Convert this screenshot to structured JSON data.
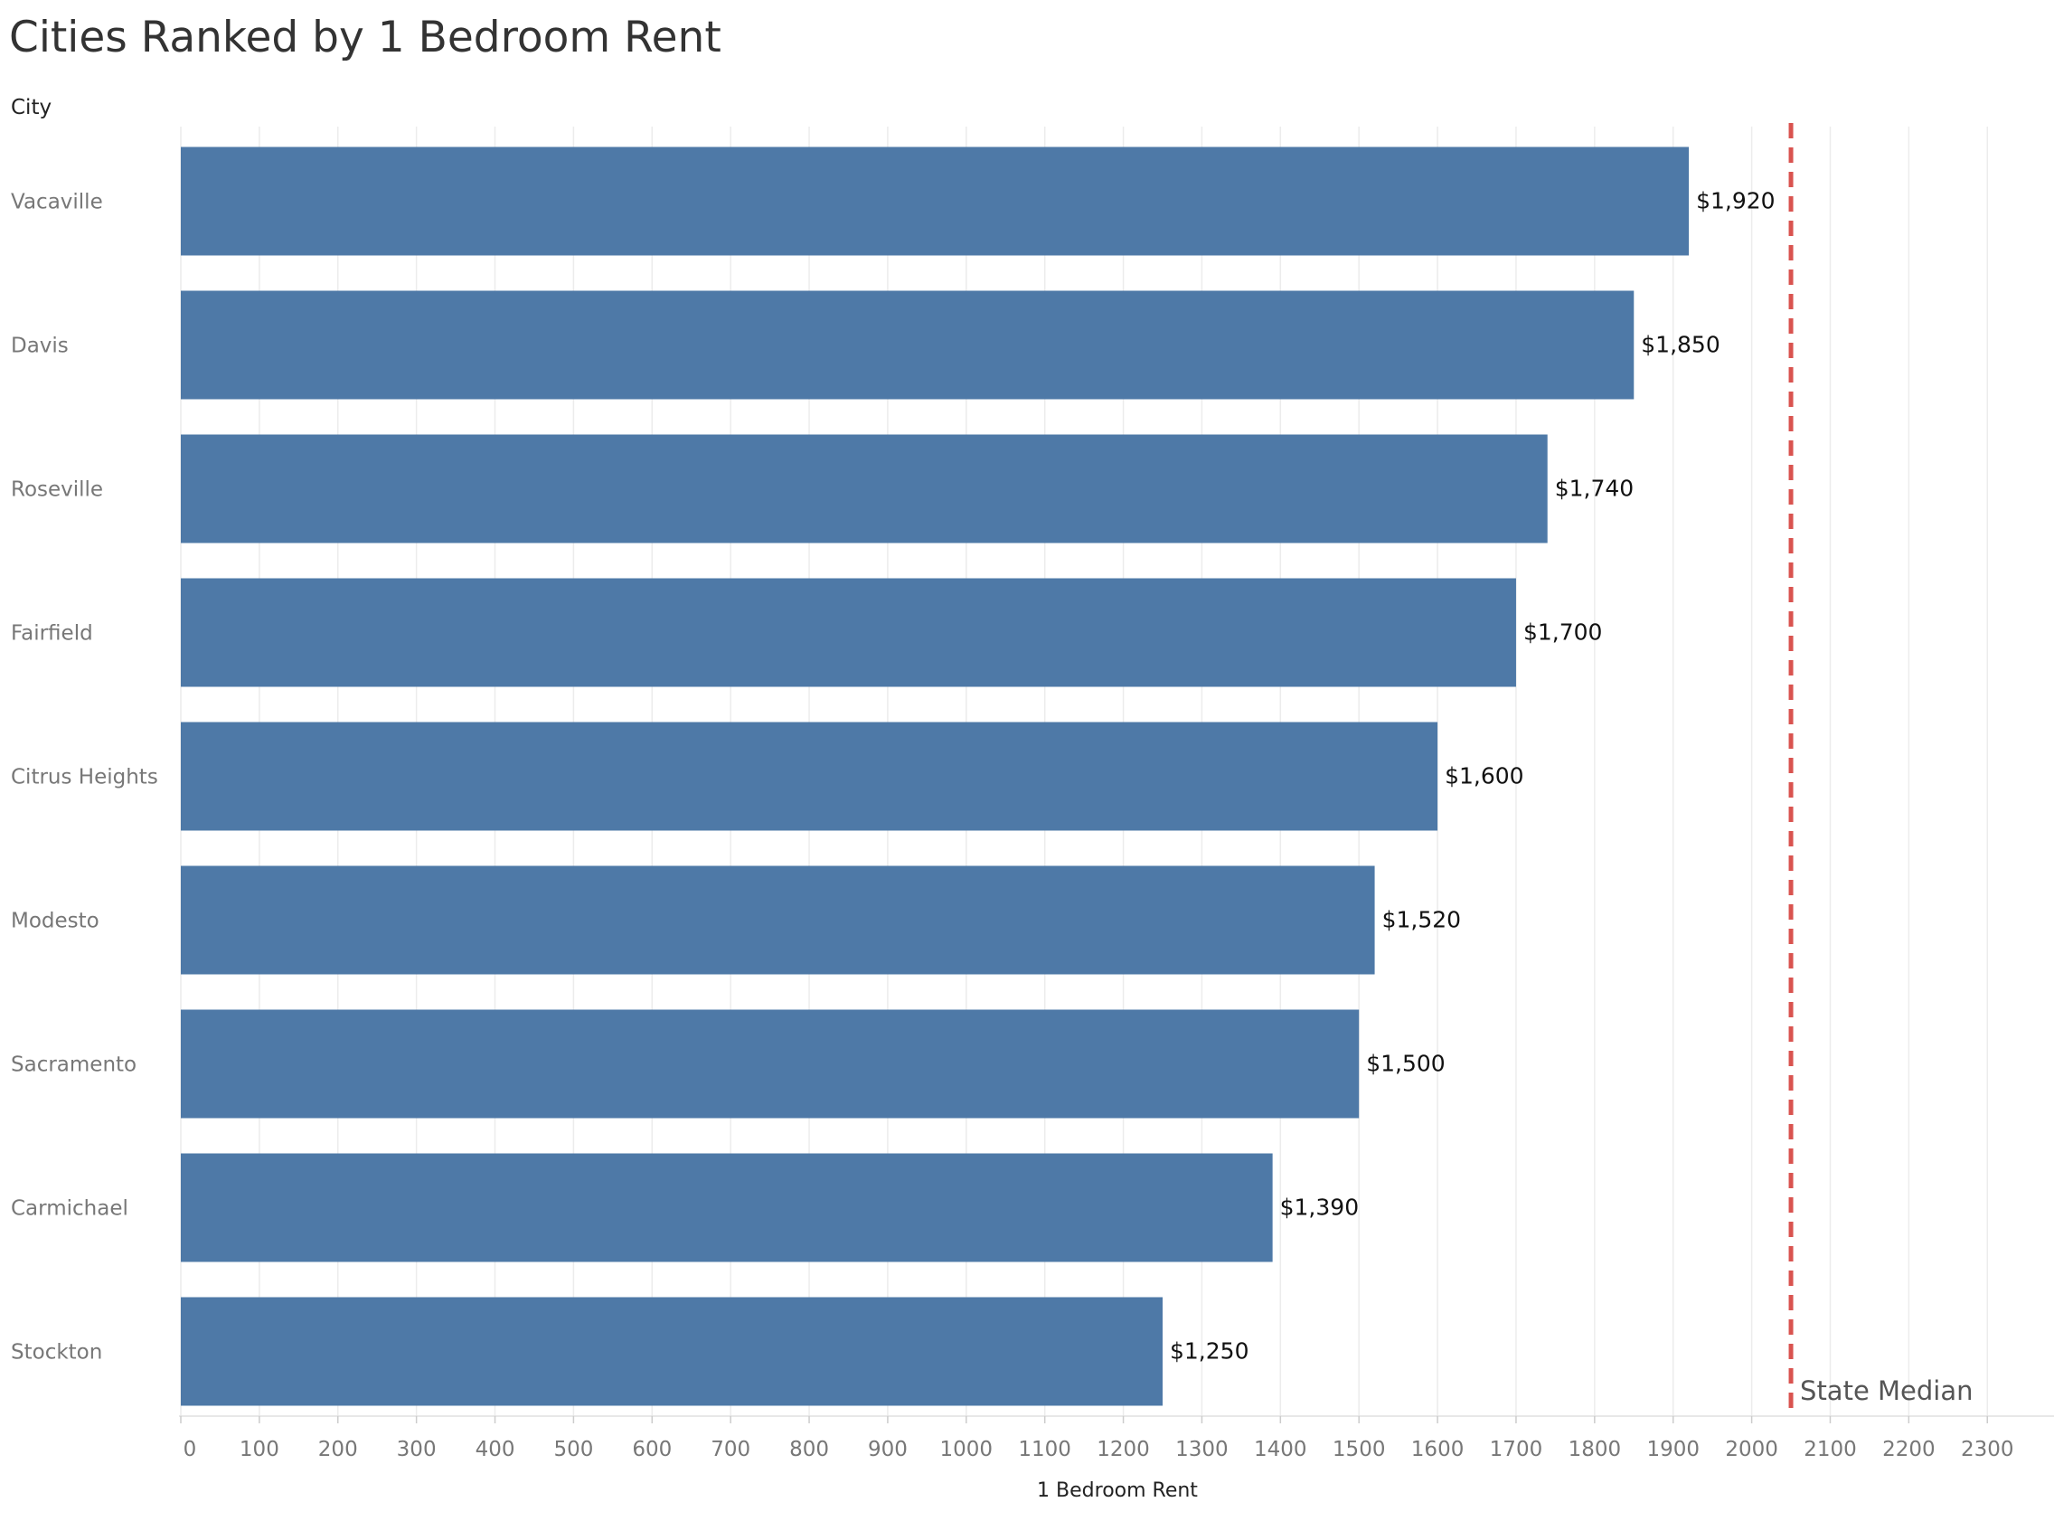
{
  "title": "Cities Ranked by 1 Bedroom Rent",
  "row_field_label": "City",
  "chart_data": {
    "type": "bar",
    "orientation": "horizontal",
    "title": "Cities Ranked by 1 Bedroom Rent",
    "ylabel": "City",
    "xlabel": "1 Bedroom Rent",
    "categories": [
      "Vacaville",
      "Davis",
      "Roseville",
      "Fairfield",
      "Citrus Heights",
      "Modesto",
      "Sacramento",
      "Carmichael",
      "Stockton"
    ],
    "values": [
      1920,
      1850,
      1740,
      1700,
      1600,
      1520,
      1500,
      1390,
      1250
    ],
    "value_labels": [
      "$1,920",
      "$1,850",
      "$1,740",
      "$1,700",
      "$1,600",
      "$1,520",
      "$1,500",
      "$1,390",
      "$1,250"
    ],
    "xlim": [
      0,
      2380
    ],
    "x_ticks": [
      0,
      100,
      200,
      300,
      400,
      500,
      600,
      700,
      800,
      900,
      1000,
      1100,
      1200,
      1300,
      1400,
      1500,
      1600,
      1700,
      1800,
      1900,
      2000,
      2100,
      2200,
      2300
    ],
    "reference_line": {
      "label": "State Median",
      "value": 2050,
      "style": "dashed",
      "color": "#d9534f"
    },
    "grid": "vertical",
    "bar_color": "#4e79a7"
  }
}
